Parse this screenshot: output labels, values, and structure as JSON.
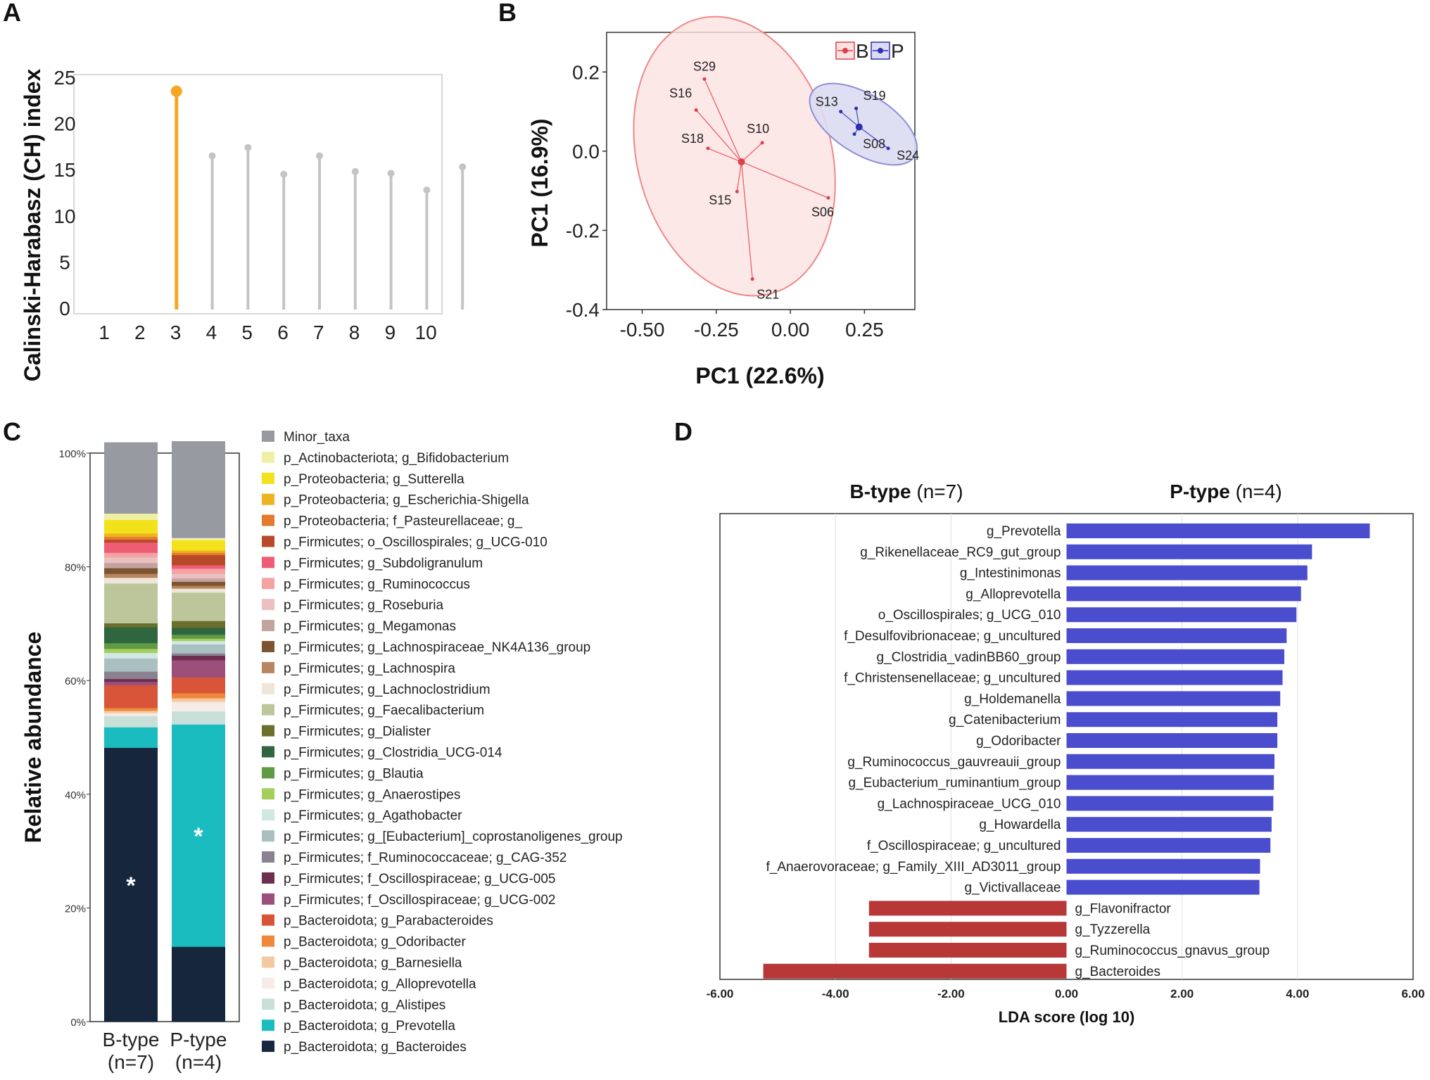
{
  "panels": {
    "a": "A",
    "b": "B",
    "c": "C",
    "d": "D"
  },
  "chart_data": [
    {
      "panel": "A",
      "type": "lollipop",
      "ylabel": "Calinski-Harabasz (CH) index",
      "ylim": [
        0,
        25
      ],
      "yticks": [
        "0",
        "5",
        "10",
        "15",
        "20",
        "25"
      ],
      "categories": [
        "1",
        "2",
        "3",
        "4",
        "5",
        "6",
        "7",
        "8",
        "9",
        "10"
      ],
      "values": [
        null,
        23.5,
        16.5,
        17.4,
        14.5,
        16.5,
        14.8,
        14.6,
        12.8,
        15.3
      ],
      "highlight_index": 1,
      "colors": {
        "highlight": "#f5a623",
        "normal": "#c4c4c4"
      }
    },
    {
      "panel": "B",
      "type": "scatter",
      "xlabel": "PC1 (22.6%)",
      "ylabel": "PC1 (16.9%)",
      "xlim": [
        -0.62,
        0.42
      ],
      "ylim": [
        -0.4,
        0.3
      ],
      "xticks": [
        "-0.50",
        "-0.25",
        "0.00",
        "0.25"
      ],
      "yticks": [
        "-0.4",
        "-0.2",
        "0.0",
        "0.2"
      ],
      "legend": [
        "B",
        "P"
      ],
      "series": [
        {
          "name": "B",
          "color": "#e0404a",
          "fill": "#fde2e2",
          "centroid": [
            -0.165,
            -0.027
          ],
          "points": [
            {
              "label": "S29",
              "x": -0.29,
              "y": 0.182
            },
            {
              "label": "S16",
              "x": -0.318,
              "y": 0.104
            },
            {
              "label": "S18",
              "x": -0.278,
              "y": 0.007
            },
            {
              "label": "S10",
              "x": -0.095,
              "y": 0.021
            },
            {
              "label": "S15",
              "x": -0.18,
              "y": -0.102
            },
            {
              "label": "S06",
              "x": 0.128,
              "y": -0.118
            },
            {
              "label": "S21",
              "x": -0.128,
              "y": -0.323
            }
          ]
        },
        {
          "name": "P",
          "color": "#2d2fb0",
          "fill": "#dcdcf2",
          "centroid": [
            0.232,
            0.061
          ],
          "points": [
            {
              "label": "S13",
              "x": 0.17,
              "y": 0.1
            },
            {
              "label": "S19",
              "x": 0.222,
              "y": 0.108
            },
            {
              "label": "S08",
              "x": 0.216,
              "y": 0.043
            },
            {
              "label": "S24",
              "x": 0.33,
              "y": 0.007
            }
          ]
        }
      ]
    },
    {
      "panel": "C",
      "type": "stacked-bar",
      "ylabel": "Relative abundance",
      "yticks": [
        "0%",
        "20%",
        "40%",
        "60%",
        "80%",
        "100%"
      ],
      "categories": [
        "B-type\n(n=7)",
        "P-type\n(n=4)"
      ],
      "category_lines": [
        [
          "B-type",
          "(n=7)"
        ],
        [
          "P-type",
          "(n=4)"
        ]
      ],
      "annotations": [
        "*",
        "*"
      ],
      "series": [
        {
          "name": "p_Bacteroidota; g_Bacteroides",
          "color": "#16263d",
          "values": [
            48.2,
            13.2
          ]
        },
        {
          "name": "p_Bacteroidota; g_Prevotella",
          "color": "#1bbcbf",
          "values": [
            3.6,
            39.1
          ]
        },
        {
          "name": "p_Bacteroidota; g_Alistipes",
          "color": "#c8e0d8",
          "values": [
            2.0,
            2.3
          ]
        },
        {
          "name": "p_Bacteroidota; g_Alloprevotella",
          "color": "#f5ece8",
          "values": [
            0.5,
            1.7
          ]
        },
        {
          "name": "p_Bacteroidota; g_Barnesiella",
          "color": "#f5c9a0",
          "values": [
            0.4,
            0.6
          ]
        },
        {
          "name": "p_Bacteroidota; g_Odoribacter",
          "color": "#f0883a",
          "values": [
            0.5,
            0.9
          ]
        },
        {
          "name": "p_Bacteroidota; g_Parabacteroides",
          "color": "#d9553a",
          "values": [
            4.0,
            2.8
          ]
        },
        {
          "name": "p_Firmicutes; f_Oscillospiraceae; g_UCG-002",
          "color": "#9b4f7a",
          "values": [
            0.6,
            3.0
          ]
        },
        {
          "name": "p_Firmicutes; f_Oscillospiraceae; g_UCG-005",
          "color": "#6e2e4e",
          "values": [
            0.5,
            0.8
          ]
        },
        {
          "name": "p_Firmicutes; f_Ruminococcaceae; g_CAG-352",
          "color": "#8a8290",
          "values": [
            1.3,
            0.4
          ]
        },
        {
          "name": "p_Firmicutes; g_[Eubacterium]_coprostanoligenes_group",
          "color": "#a9bfc0",
          "values": [
            2.3,
            1.6
          ]
        },
        {
          "name": "p_Firmicutes; g_Agathobacter",
          "color": "#cfe8e2",
          "values": [
            1.0,
            0.6
          ]
        },
        {
          "name": "p_Firmicutes; g_Anaerostipes",
          "color": "#a4cf5b",
          "values": [
            0.7,
            0.4
          ]
        },
        {
          "name": "p_Firmicutes; g_Blautia",
          "color": "#5f9a45",
          "values": [
            1.0,
            0.7
          ]
        },
        {
          "name": "p_Firmicutes; g_Clostridia_UCG-014",
          "color": "#2f6640",
          "values": [
            2.8,
            1.2
          ]
        },
        {
          "name": "p_Firmicutes; g_Dialister",
          "color": "#6b6e2c",
          "values": [
            0.7,
            1.2
          ]
        },
        {
          "name": "p_Firmicutes; g_Faecalibacterium",
          "color": "#bdc69a",
          "values": [
            7.0,
            5.0
          ]
        },
        {
          "name": "p_Firmicutes; g_Lachnoclostridium",
          "color": "#eee6d8",
          "values": [
            1.0,
            0.7
          ]
        },
        {
          "name": "p_Firmicutes; g_Lachnospira",
          "color": "#b98560",
          "values": [
            0.7,
            0.5
          ]
        },
        {
          "name": "p_Firmicutes; g_Lachnospiraceae_NK4A136_group",
          "color": "#7c5430",
          "values": [
            1.0,
            0.7
          ]
        },
        {
          "name": "p_Firmicutes; g_Megamonas",
          "color": "#c2a3a0",
          "values": [
            0.9,
            0.6
          ]
        },
        {
          "name": "p_Firmicutes; g_Roseburia",
          "color": "#ecc0c0",
          "values": [
            1.0,
            0.8
          ]
        },
        {
          "name": "p_Firmicutes; g_Ruminococcus",
          "color": "#f4a3a3",
          "values": [
            0.8,
            0.9
          ]
        },
        {
          "name": "p_Firmicutes; g_Subdoligranulum",
          "color": "#ee5c76",
          "values": [
            1.8,
            0.6
          ]
        },
        {
          "name": "p_Firmicutes; o_Oscillospirales; g_UCG-010",
          "color": "#b84a2a",
          "values": [
            0.5,
            1.8
          ]
        },
        {
          "name": "p_Proteobacteria; f_Pasteurellaceae; g_",
          "color": "#e47a2c",
          "values": [
            0.5,
            0.4
          ]
        },
        {
          "name": "p_Proteobacteria; g_Escherichia-Shigella",
          "color": "#eeb320",
          "values": [
            0.6,
            0.4
          ]
        },
        {
          "name": "p_Proteobacteria; g_Sutterella",
          "color": "#f3e21b",
          "values": [
            2.4,
            1.8
          ]
        },
        {
          "name": "p_Actinobacteriota; g_Bifidobacterium",
          "color": "#eef0a8",
          "values": [
            1.1,
            0.4
          ]
        },
        {
          "name": "Minor_taxa",
          "color": "#979ba1",
          "values": [
            12.5,
            17.0
          ]
        }
      ]
    },
    {
      "panel": "D",
      "type": "bar",
      "orientation": "horizontal",
      "xlabel": "LDA score (log 10)",
      "xlim": [
        -6,
        6
      ],
      "xticks": [
        "-6.00",
        "-4.00",
        "-2.00",
        "0.00",
        "2.00",
        "4.00",
        "6.00"
      ],
      "group_headers": [
        {
          "bold": "B-type",
          "normal": " (n=7)"
        },
        {
          "bold": "P-type",
          "normal": " (n=4)"
        }
      ],
      "colors": {
        "positive": "#4a4dcd",
        "negative": "#b83838"
      },
      "categories": [
        "g_Prevotella",
        "g_Rikenellaceae_RC9_gut_group",
        "g_Intestinimonas",
        "g_Alloprevotella",
        "o_Oscillospirales; g_UCG_010",
        "f_Desulfovibrionaceae; g_uncultured",
        "g_Clostridia_vadinBB60_group",
        "f_Christensenellaceae; g_uncultured",
        "g_Holdemanella",
        "g_Catenibacterium",
        "g_Odoribacter",
        "g_Ruminococcus_gauvreauii_group",
        "g_Eubacterium_ruminantium_group",
        "g_Lachnospiraceae_UCG_010",
        "g_Howardella",
        "f_Oscillospiraceae; g_uncultured",
        "f_Anaerovoraceae; g_Family_XIII_AD3011_group",
        "g_Victivallaceae",
        "g_Flavonifractor",
        "g_Tyzzerella",
        "g_Ruminococcus_gnavus_group",
        "g_Bacteroides"
      ],
      "values": [
        5.25,
        4.25,
        4.17,
        4.06,
        3.98,
        3.81,
        3.77,
        3.74,
        3.7,
        3.65,
        3.65,
        3.6,
        3.59,
        3.58,
        3.55,
        3.53,
        3.35,
        3.34,
        -3.42,
        -3.42,
        -3.42,
        -5.25
      ]
    }
  ]
}
